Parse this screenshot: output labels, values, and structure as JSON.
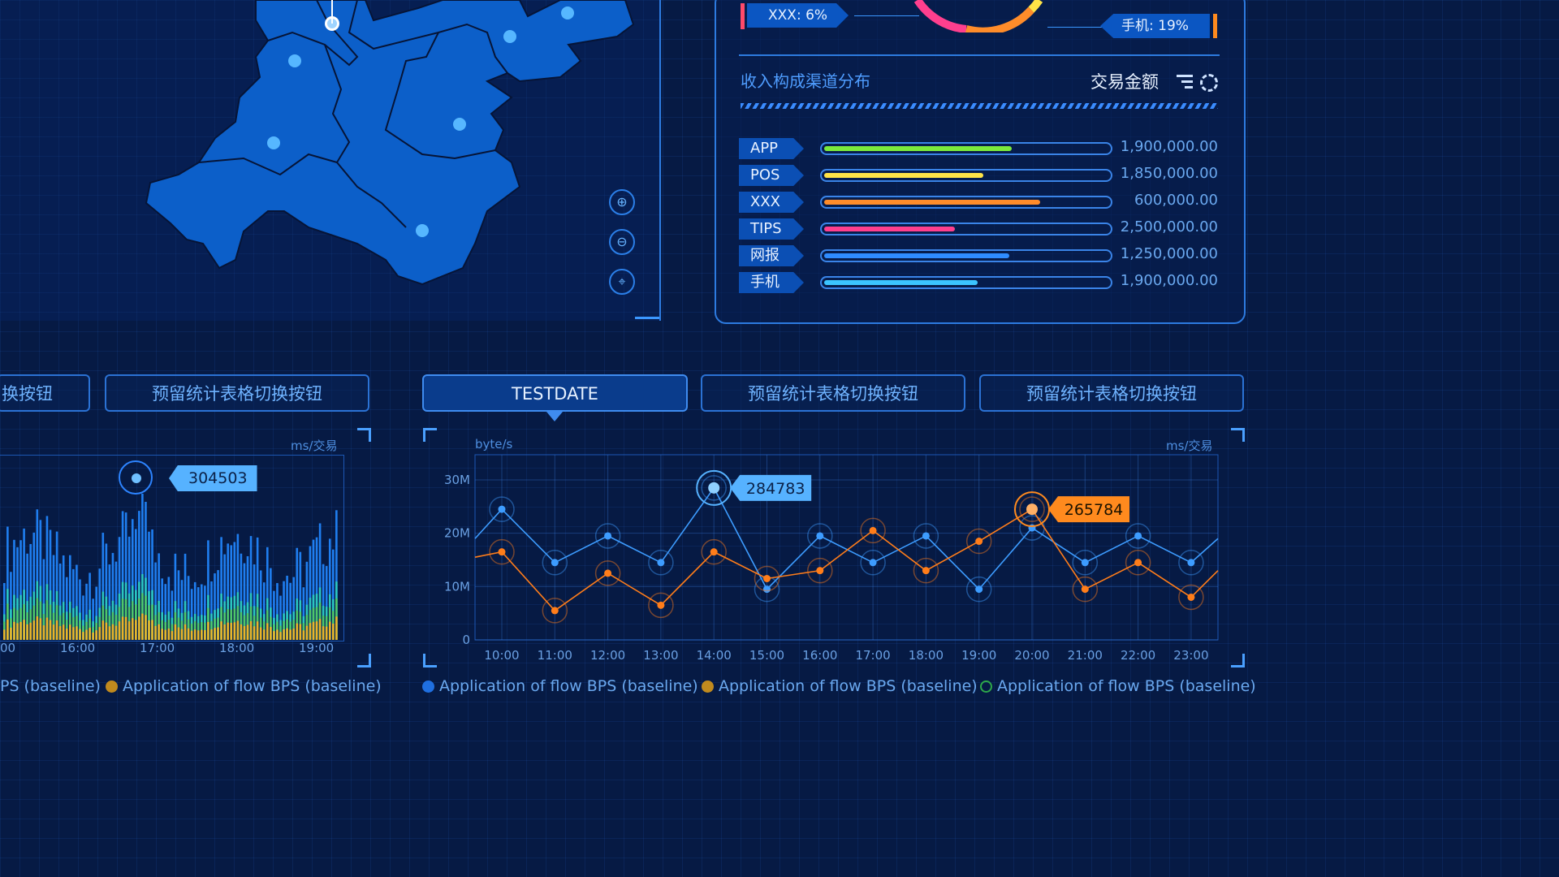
{
  "colors": {
    "accent": "#3b97ff",
    "orange": "#ff8a1e",
    "bg": "#061a44"
  },
  "map": {
    "zoom_in_icon": "zoom-in-icon",
    "zoom_out_icon": "zoom-out-icon",
    "reset_icon": "reset-view-icon"
  },
  "pie_labels": {
    "left": "XXX: 6%",
    "right": "手机: 19%"
  },
  "revenue": {
    "title": "收入构成渠道分布",
    "metric": "交易金额",
    "rows": [
      {
        "label": "APP",
        "value": "1,900,000.00",
        "fill": 0.66,
        "color": "#7bea3c"
      },
      {
        "label": "POS",
        "value": "1,850,000.00",
        "fill": 0.56,
        "color": "#ffe347"
      },
      {
        "label": "XXX",
        "value": "600,000.00",
        "fill": 0.76,
        "color": "#ff8c2a"
      },
      {
        "label": "TIPS",
        "value": "2,500,000.00",
        "fill": 0.46,
        "color": "#ff3f8e"
      },
      {
        "label": "网报",
        "value": "1,250,000.00",
        "fill": 0.65,
        "color": "#2f8cff"
      },
      {
        "label": "手机",
        "value": "1,900,000.00",
        "fill": 0.54,
        "color": "#3bc4ff"
      }
    ]
  },
  "tabs": [
    "换按钮",
    "预留统计表格切换按钮",
    "TESTDATE",
    "预留统计表格切换按钮",
    "预留统计表格切换按钮"
  ],
  "left_chart": {
    "unit": "ms/交易",
    "callout": "304503",
    "x_ticks": [
      "00",
      "16:00",
      "17:00",
      "18:00",
      "19:00"
    ]
  },
  "legend_left": [
    {
      "text": "PS (baseline)"
    },
    {
      "text": "Application of flow BPS (baseline)",
      "color": "#c08a1e"
    }
  ],
  "legend_right": [
    {
      "text": "Application of flow BPS (baseline)",
      "color": "#1f6fe0"
    },
    {
      "text": "Application of flow BPS (baseline)",
      "color": "#c08a1e"
    },
    {
      "text": "Application of flow BPS (baseline)",
      "color": "#2ea84a"
    }
  ],
  "chart_data": {
    "type": "line",
    "ylabel": "byte/s",
    "unit_right": "ms/交易",
    "yticks": [
      "0",
      "10M",
      "20M",
      "30M"
    ],
    "ylim": [
      0,
      30
    ],
    "x": [
      "10:00",
      "11:00",
      "12:00",
      "13:00",
      "14:00",
      "15:00",
      "16:00",
      "17:00",
      "18:00",
      "19:00",
      "20:00",
      "21:00",
      "22:00",
      "23:00"
    ],
    "series": [
      {
        "values": [
          24.5,
          14.5,
          19.5,
          14.5,
          28.5,
          9.5,
          19.5,
          14.5,
          19.5,
          9.5,
          21,
          14.5,
          19.5,
          14.5
        ],
        "color": "#3d9cff"
      },
      {
        "values": [
          16.5,
          5.5,
          12.5,
          6.5,
          16.5,
          11.5,
          13,
          20.5,
          13,
          18.5,
          24.5,
          9.5,
          14.5,
          8
        ],
        "color": "#ff7d1a"
      }
    ],
    "annotations": [
      {
        "x": "14:00",
        "label": "284783"
      },
      {
        "x": "20:00",
        "label": "265784"
      }
    ]
  }
}
